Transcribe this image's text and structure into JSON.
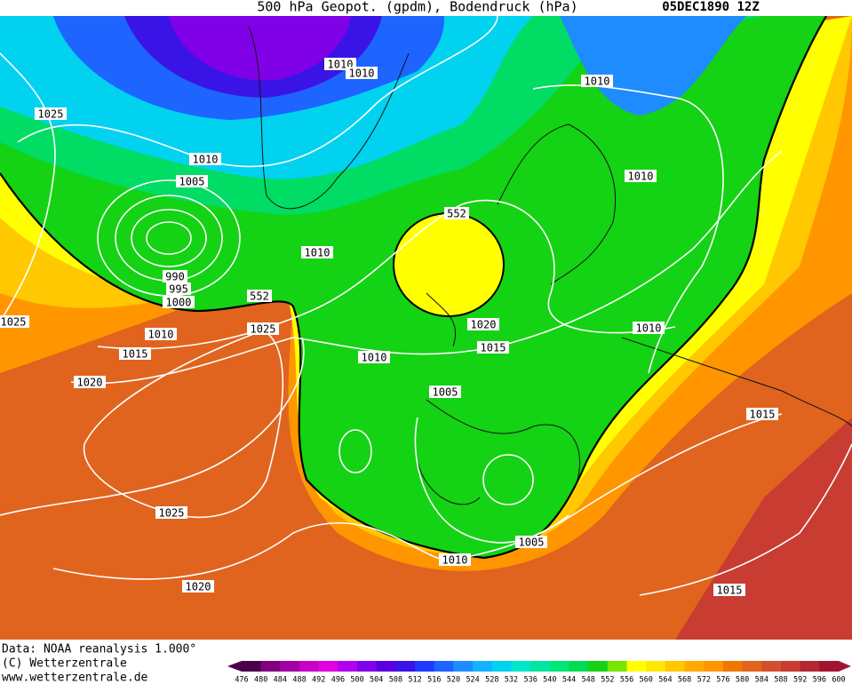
{
  "header": {
    "title": "500 hPa Geopot. (gpdm), Bodendruck (hPa)",
    "date": "05DEC1890 12Z"
  },
  "footer": {
    "source": "Data: NOAA reanalysis 1.000°",
    "copyright": "(C) Wetterzentrale",
    "url": "www.wetterzentrale.de"
  },
  "colorbar": {
    "levels": [
      476,
      480,
      484,
      488,
      492,
      496,
      500,
      504,
      508,
      512,
      516,
      520,
      524,
      528,
      532,
      536,
      540,
      544,
      548,
      552,
      556,
      560,
      564,
      568,
      572,
      576,
      580,
      584,
      588,
      592,
      596,
      600
    ],
    "colors": [
      "#4c004c",
      "#800080",
      "#a300a3",
      "#c800c8",
      "#e000e0",
      "#b000f0",
      "#8000e8",
      "#5a00e0",
      "#3a14e6",
      "#1e3cff",
      "#1e64ff",
      "#1e8cff",
      "#10b4ff",
      "#00d2f0",
      "#00e6c8",
      "#00e6a0",
      "#00e678",
      "#00dc50",
      "#14d214",
      "#78e600",
      "#ffff00",
      "#ffe600",
      "#ffc800",
      "#ffaa00",
      "#ff9600",
      "#f07800",
      "#e0641e",
      "#d2502d",
      "#c83c32",
      "#b42832",
      "#a01432"
    ]
  },
  "isobars": {
    "labels": [
      "1010",
      "1010",
      "1010",
      "1025",
      "1010",
      "1005",
      "1010",
      "1010",
      "990",
      "995",
      "1000",
      "552",
      "552",
      "1025",
      "1010",
      "1025",
      "1020",
      "1010",
      "1015",
      "1015",
      "1010",
      "1020",
      "1005",
      "1015",
      "1025",
      "1005",
      "1010",
      "1020",
      "1015"
    ]
  }
}
